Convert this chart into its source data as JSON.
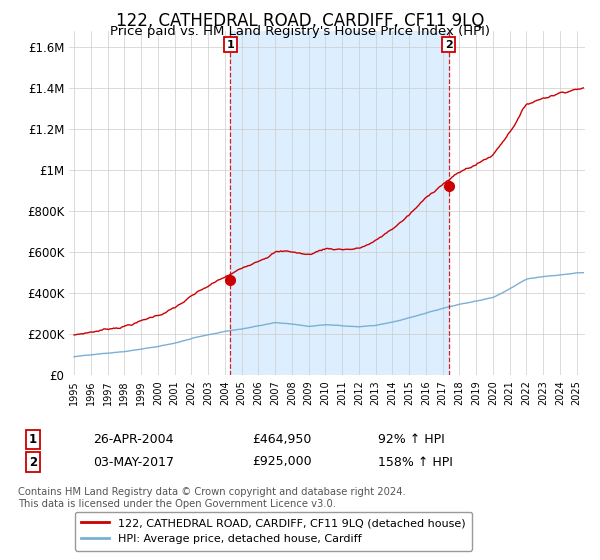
{
  "title": "122, CATHEDRAL ROAD, CARDIFF, CF11 9LQ",
  "subtitle": "Price paid vs. HM Land Registry's House Price Index (HPI)",
  "ylabel_ticks": [
    "£0",
    "£200K",
    "£400K",
    "£600K",
    "£800K",
    "£1M",
    "£1.2M",
    "£1.4M",
    "£1.6M"
  ],
  "ytick_values": [
    0,
    200000,
    400000,
    600000,
    800000,
    1000000,
    1200000,
    1400000,
    1600000
  ],
  "ylim": [
    0,
    1680000
  ],
  "xlim_start": 1994.7,
  "xlim_end": 2025.5,
  "red_color": "#cc0000",
  "blue_color": "#7ab0d4",
  "fill_color": "#ddeeff",
  "sale1_x": 2004.32,
  "sale1_y": 464950,
  "sale2_x": 2017.37,
  "sale2_y": 925000,
  "legend_entries": [
    "122, CATHEDRAL ROAD, CARDIFF, CF11 9LQ (detached house)",
    "HPI: Average price, detached house, Cardiff"
  ],
  "annotation1_date": "26-APR-2004",
  "annotation1_price": "£464,950",
  "annotation1_hpi": "92% ↑ HPI",
  "annotation2_date": "03-MAY-2017",
  "annotation2_price": "£925,000",
  "annotation2_hpi": "158% ↑ HPI",
  "footer": "Contains HM Land Registry data © Crown copyright and database right 2024.\nThis data is licensed under the Open Government Licence v3.0.",
  "background_color": "#ffffff",
  "grid_color": "#cccccc"
}
